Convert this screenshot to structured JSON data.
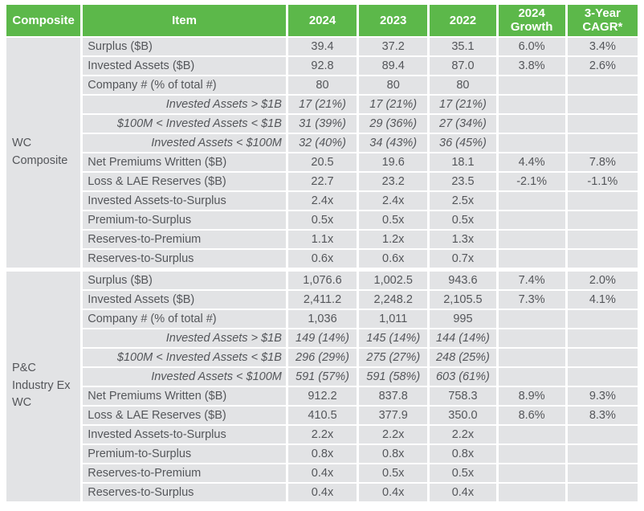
{
  "colors": {
    "header_bg": "#5cb84a",
    "cell_bg": "#e2e3e5",
    "text": "#54565a",
    "header_text": "#ffffff",
    "page_bg": "#ffffff"
  },
  "table": {
    "columns": [
      {
        "key": "group",
        "label": "Composite"
      },
      {
        "key": "item",
        "label": "Item"
      },
      {
        "key": "y2024",
        "label": "2024"
      },
      {
        "key": "y2023",
        "label": "2023"
      },
      {
        "key": "y2022",
        "label": "2022"
      },
      {
        "key": "growth",
        "label": "2024 Growth"
      },
      {
        "key": "cagr",
        "label": "3-Year CAGR*"
      }
    ],
    "groups": [
      {
        "name": "WC Composite",
        "slug": "wc-composite",
        "rows": [
          {
            "item": "Surplus ($B)",
            "sub": false,
            "values": [
              "39.4",
              "37.2",
              "35.1",
              "6.0%",
              "3.4%"
            ]
          },
          {
            "item": "Invested Assets ($B)",
            "sub": false,
            "values": [
              "92.8",
              "89.4",
              "87.0",
              "3.8%",
              "2.6%"
            ]
          },
          {
            "item": "Company # (% of total #)",
            "sub": false,
            "values": [
              "80",
              "80",
              "80",
              "",
              ""
            ]
          },
          {
            "item": "Invested Assets > $1B",
            "sub": true,
            "values": [
              "17 (21%)",
              "17 (21%)",
              "17 (21%)",
              "",
              ""
            ]
          },
          {
            "item": "$100M < Invested Assets < $1B",
            "sub": true,
            "values": [
              "31 (39%)",
              "29 (36%)",
              "27 (34%)",
              "",
              ""
            ]
          },
          {
            "item": "Invested Assets < $100M",
            "sub": true,
            "values": [
              "32 (40%)",
              "34 (43%)",
              "36 (45%)",
              "",
              ""
            ]
          },
          {
            "item": "Net Premiums Written ($B)",
            "sub": false,
            "values": [
              "20.5",
              "19.6",
              "18.1",
              "4.4%",
              "7.8%"
            ]
          },
          {
            "item": "Loss & LAE Reserves ($B)",
            "sub": false,
            "values": [
              "22.7",
              "23.2",
              "23.5",
              "-2.1%",
              "-1.1%"
            ]
          },
          {
            "item": "Invested Assets-to-Surplus",
            "sub": false,
            "values": [
              "2.4x",
              "2.4x",
              "2.5x",
              "",
              ""
            ]
          },
          {
            "item": "Premium-to-Surplus",
            "sub": false,
            "values": [
              "0.5x",
              "0.5x",
              "0.5x",
              "",
              ""
            ]
          },
          {
            "item": "Reserves-to-Premium",
            "sub": false,
            "values": [
              "1.1x",
              "1.2x",
              "1.3x",
              "",
              ""
            ]
          },
          {
            "item": "Reserves-to-Surplus",
            "sub": false,
            "values": [
              "0.6x",
              "0.6x",
              "0.7x",
              "",
              ""
            ]
          }
        ]
      },
      {
        "name": "P&C Industry Ex WC",
        "slug": "pc-industry-ex-wc",
        "rows": [
          {
            "item": "Surplus ($B)",
            "sub": false,
            "values": [
              "1,076.6",
              "1,002.5",
              "943.6",
              "7.4%",
              "2.0%"
            ]
          },
          {
            "item": "Invested Assets ($B)",
            "sub": false,
            "values": [
              "2,411.2",
              "2,248.2",
              "2,105.5",
              "7.3%",
              "4.1%"
            ]
          },
          {
            "item": "Company # (% of total #)",
            "sub": false,
            "values": [
              "1,036",
              "1,011",
              "995",
              "",
              ""
            ]
          },
          {
            "item": "Invested Assets > $1B",
            "sub": true,
            "values": [
              "149 (14%)",
              "145 (14%)",
              "144 (14%)",
              "",
              ""
            ]
          },
          {
            "item": "$100M < Invested Assets < $1B",
            "sub": true,
            "values": [
              "296 (29%)",
              "275 (27%)",
              "248 (25%)",
              "",
              ""
            ]
          },
          {
            "item": "Invested Assets < $100M",
            "sub": true,
            "values": [
              "591 (57%)",
              "591 (58%)",
              "603 (61%)",
              "",
              ""
            ]
          },
          {
            "item": "Net Premiums Written ($B)",
            "sub": false,
            "values": [
              "912.2",
              "837.8",
              "758.3",
              "8.9%",
              "9.3%"
            ]
          },
          {
            "item": "Loss & LAE Reserves ($B)",
            "sub": false,
            "values": [
              "410.5",
              "377.9",
              "350.0",
              "8.6%",
              "8.3%"
            ]
          },
          {
            "item": "Invested Assets-to-Surplus",
            "sub": false,
            "values": [
              "2.2x",
              "2.2x",
              "2.2x",
              "",
              ""
            ]
          },
          {
            "item": "Premium-to-Surplus",
            "sub": false,
            "values": [
              "0.8x",
              "0.8x",
              "0.8x",
              "",
              ""
            ]
          },
          {
            "item": "Reserves-to-Premium",
            "sub": false,
            "values": [
              "0.4x",
              "0.5x",
              "0.5x",
              "",
              ""
            ]
          },
          {
            "item": "Reserves-to-Surplus",
            "sub": false,
            "values": [
              "0.4x",
              "0.4x",
              "0.4x",
              "",
              ""
            ]
          }
        ]
      }
    ]
  }
}
